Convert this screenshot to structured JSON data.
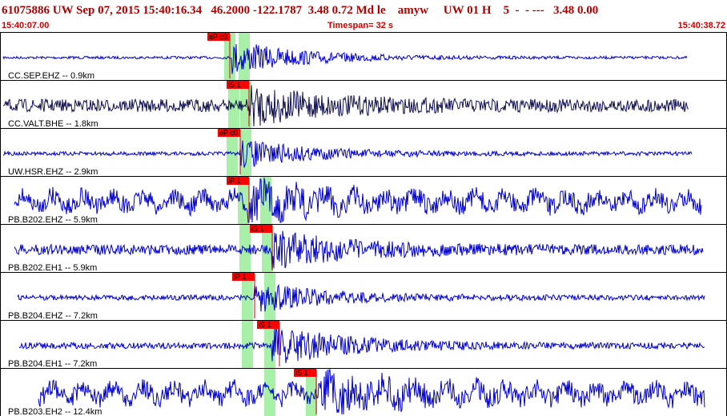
{
  "header": {
    "title": "61075886 UW Sep 07, 2015 15:40:16.34   46.2000 -122.1787  3.48 0.72 Md le    amyw     UW 01 H    5  -  - ---   3.48 0.00",
    "start_time": "15:40:07.00",
    "timespan": "Timespan=  32 s",
    "end_time": "15:40:38.72"
  },
  "traces": [
    {
      "label": "CC.SEP.EHZ -- 0.9km",
      "pick": "eP c0"
    },
    {
      "label": "CC.VALT.BHE -- 1.8km",
      "pick": "iS 1"
    },
    {
      "label": "UW.HSR.EHZ -- 2.9km",
      "pick": "eP c0"
    },
    {
      "label": "PB.B202.EHZ -- 5.9km",
      "pick": "iP 1"
    },
    {
      "label": "PB.B202.EH1 -- 5.9km",
      "pick": "iS 1"
    },
    {
      "label": "PB.B204.EHZ -- 7.2km",
      "pick": "iP 1"
    },
    {
      "label": "PB.B204.EH1 -- 7.2km",
      "pick": "iS 1"
    },
    {
      "label": "PB.B203.EH2 -- 12.4km",
      "pick": "iS 1"
    }
  ]
}
